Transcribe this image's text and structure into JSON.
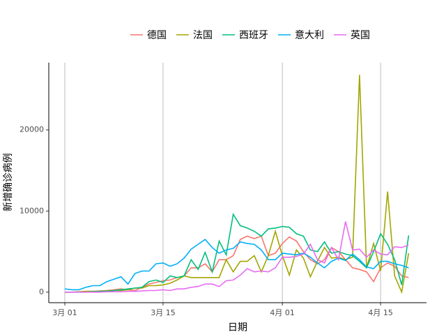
{
  "chart_data": {
    "type": "line",
    "xlabel": "日期",
    "ylabel": "新增确诊病例",
    "x": [
      "3月 01",
      "3月 02",
      "3月 03",
      "3月 04",
      "3月 05",
      "3月 06",
      "3月 07",
      "3月 08",
      "3月 09",
      "3月 10",
      "3月 11",
      "3月 12",
      "3月 13",
      "3月 14",
      "3月 15",
      "3月 16",
      "3月 17",
      "3月 18",
      "3月 19",
      "3月 20",
      "3月 21",
      "3月 22",
      "3月 23",
      "3月 24",
      "3月 25",
      "3月 26",
      "3月 27",
      "3月 28",
      "3月 29",
      "3月 30",
      "3月 31",
      "4月 01",
      "4月 02",
      "4月 03",
      "4月 04",
      "4月 05",
      "4月 06",
      "4月 07",
      "4月 08",
      "4月 09",
      "4月 10",
      "4月 11",
      "4月 12",
      "4月 13",
      "4月 14",
      "4月 15",
      "4月 16",
      "4月 17",
      "4月 18",
      "4月 19"
    ],
    "xticks": [
      "3月 01",
      "3月 15",
      "4月 01",
      "4月 15"
    ],
    "ylim": [
      -1300,
      28300
    ],
    "yticks": [
      0,
      10000,
      20000
    ],
    "grid": "x",
    "legend": "top",
    "series": [
      {
        "name": "德国",
        "color": "#F8766D",
        "values": [
          0,
          0,
          50,
          100,
          100,
          150,
          200,
          300,
          400,
          300,
          200,
          600,
          1000,
          1200,
          1400,
          1500,
          1800,
          2000,
          3000,
          3000,
          3500,
          2500,
          4000,
          4000,
          4500,
          6500,
          6900,
          6600,
          6900,
          4500,
          4800,
          6000,
          6800,
          6300,
          5000,
          4000,
          3500,
          4000,
          5500,
          5000,
          4000,
          3000,
          2800,
          2500,
          1300,
          3000,
          3600,
          3200,
          2000,
          1800
        ]
      },
      {
        "name": "法国",
        "color": "#A3A500",
        "values": [
          0,
          0,
          50,
          100,
          100,
          100,
          200,
          200,
          200,
          300,
          500,
          500,
          800,
          800,
          900,
          1100,
          1500,
          2000,
          1800,
          1800,
          1800,
          1800,
          1800,
          4000,
          2500,
          3800,
          3800,
          4500,
          2500,
          4500,
          7500,
          4500,
          2100,
          5200,
          4200,
          1900,
          3800,
          5500,
          4200,
          4300,
          4000,
          4300,
          26800,
          3000,
          6000,
          2600,
          12400,
          2000,
          0,
          4800
        ]
      },
      {
        "name": "西班牙",
        "color": "#00BF7D",
        "values": [
          0,
          0,
          0,
          0,
          50,
          100,
          100,
          200,
          300,
          400,
          500,
          600,
          1300,
          1500,
          1200,
          2000,
          1800,
          2000,
          4000,
          2800,
          4900,
          2500,
          6300,
          4600,
          9600,
          8200,
          7900,
          7500,
          6900,
          7800,
          7900,
          8100,
          8000,
          7200,
          6900,
          5200,
          5000,
          6200,
          4800,
          5000,
          4700,
          4500,
          3800,
          3000,
          5000,
          7200,
          5900,
          4000,
          900,
          7000
        ]
      },
      {
        "name": "意大利",
        "color": "#00B0F6",
        "values": [
          400,
          300,
          300,
          600,
          800,
          800,
          1300,
          1600,
          1900,
          1000,
          2300,
          2600,
          2600,
          3500,
          3600,
          3200,
          3500,
          4200,
          5300,
          5900,
          6500,
          5500,
          4800,
          5200,
          5400,
          6200,
          6000,
          5900,
          5200,
          4000,
          4000,
          4800,
          4700,
          4600,
          4800,
          4300,
          3600,
          3000,
          3800,
          4200,
          3900,
          4700,
          4000,
          3100,
          2900,
          3800,
          3800,
          3500,
          3300,
          3000
        ]
      },
      {
        "name": "英国",
        "color": "#E76BF3",
        "values": [
          0,
          0,
          0,
          0,
          0,
          0,
          50,
          50,
          50,
          100,
          100,
          150,
          200,
          200,
          300,
          200,
          400,
          400,
          600,
          700,
          1000,
          1000,
          700,
          1400,
          1500,
          2100,
          2900,
          2500,
          2600,
          2500,
          3000,
          4300,
          4300,
          4400,
          4700,
          5900,
          4000,
          3600,
          5500,
          4000,
          8700,
          5200,
          5300,
          4300,
          5200,
          4700,
          4600,
          5600,
          5500,
          5800
        ]
      }
    ]
  }
}
